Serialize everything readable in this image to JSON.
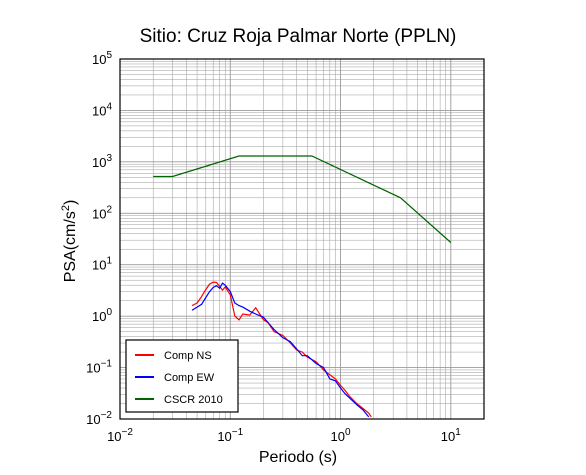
{
  "chart_data": {
    "type": "line",
    "title": "Sitio: Cruz Roja Palmar Norte (PPLN)",
    "xlabel": "Periodo (s)",
    "ylabel": "PSA(cm/s2)",
    "xscale": "log",
    "yscale": "log",
    "xlim": [
      0.01,
      20
    ],
    "ylim": [
      0.01,
      100000
    ],
    "grid": true,
    "legend_position": "bottom-left",
    "x_tick_labels": [
      {
        "base": "10",
        "exp": "−2",
        "value": 0.01
      },
      {
        "base": "10",
        "exp": "−1",
        "value": 0.1
      },
      {
        "base": "10",
        "exp": "0",
        "value": 1
      },
      {
        "base": "10",
        "exp": "1",
        "value": 10
      }
    ],
    "y_tick_labels": [
      {
        "base": "10",
        "exp": "−2",
        "value": 0.01
      },
      {
        "base": "10",
        "exp": "−1",
        "value": 0.1
      },
      {
        "base": "10",
        "exp": "0",
        "value": 1
      },
      {
        "base": "10",
        "exp": "1",
        "value": 10
      },
      {
        "base": "10",
        "exp": "2",
        "value": 100
      },
      {
        "base": "10",
        "exp": "3",
        "value": 1000
      },
      {
        "base": "10",
        "exp": "4",
        "value": 10000
      },
      {
        "base": "10",
        "exp": "5",
        "value": 100000
      }
    ],
    "series": [
      {
        "name": "Comp NS",
        "color": "#ff0000",
        "x": [
          0.045,
          0.05,
          0.055,
          0.06,
          0.065,
          0.07,
          0.075,
          0.08,
          0.085,
          0.09,
          0.1,
          0.11,
          0.12,
          0.13,
          0.15,
          0.17,
          0.2,
          0.22,
          0.25,
          0.3,
          0.35,
          0.4,
          0.45,
          0.5,
          0.6,
          0.7,
          0.8,
          0.9,
          1.0,
          1.1,
          1.2,
          1.4,
          1.6,
          1.8,
          1.9
        ],
        "y": [
          1.6,
          1.8,
          2.4,
          3.3,
          4.2,
          4.6,
          4.5,
          3.8,
          3.2,
          3.7,
          2.6,
          1.0,
          0.85,
          1.1,
          1.05,
          1.45,
          0.85,
          0.75,
          0.5,
          0.42,
          0.3,
          0.22,
          0.2,
          0.16,
          0.13,
          0.09,
          0.072,
          0.06,
          0.045,
          0.036,
          0.028,
          0.02,
          0.016,
          0.013,
          0.011
        ]
      },
      {
        "name": "Comp EW",
        "color": "#0000ff",
        "x": [
          0.045,
          0.05,
          0.055,
          0.06,
          0.065,
          0.07,
          0.075,
          0.08,
          0.085,
          0.09,
          0.1,
          0.11,
          0.12,
          0.13,
          0.15,
          0.17,
          0.2,
          0.22,
          0.25,
          0.3,
          0.35,
          0.4,
          0.45,
          0.5,
          0.6,
          0.7,
          0.8,
          0.9,
          1.0,
          1.1,
          1.2,
          1.4,
          1.6,
          1.8
        ],
        "y": [
          1.3,
          1.5,
          1.7,
          2.3,
          3.0,
          3.6,
          3.9,
          3.5,
          4.4,
          4.0,
          3.0,
          1.8,
          1.6,
          1.5,
          1.25,
          1.1,
          0.95,
          0.75,
          0.55,
          0.38,
          0.32,
          0.23,
          0.17,
          0.17,
          0.12,
          0.1,
          0.06,
          0.055,
          0.04,
          0.031,
          0.026,
          0.019,
          0.015,
          0.011
        ]
      },
      {
        "name": "CSCR 2010",
        "color": "#006400",
        "x": [
          0.02,
          0.03,
          0.12,
          0.55,
          3.5,
          10
        ],
        "y": [
          520,
          520,
          1300,
          1300,
          200,
          27
        ]
      }
    ]
  }
}
